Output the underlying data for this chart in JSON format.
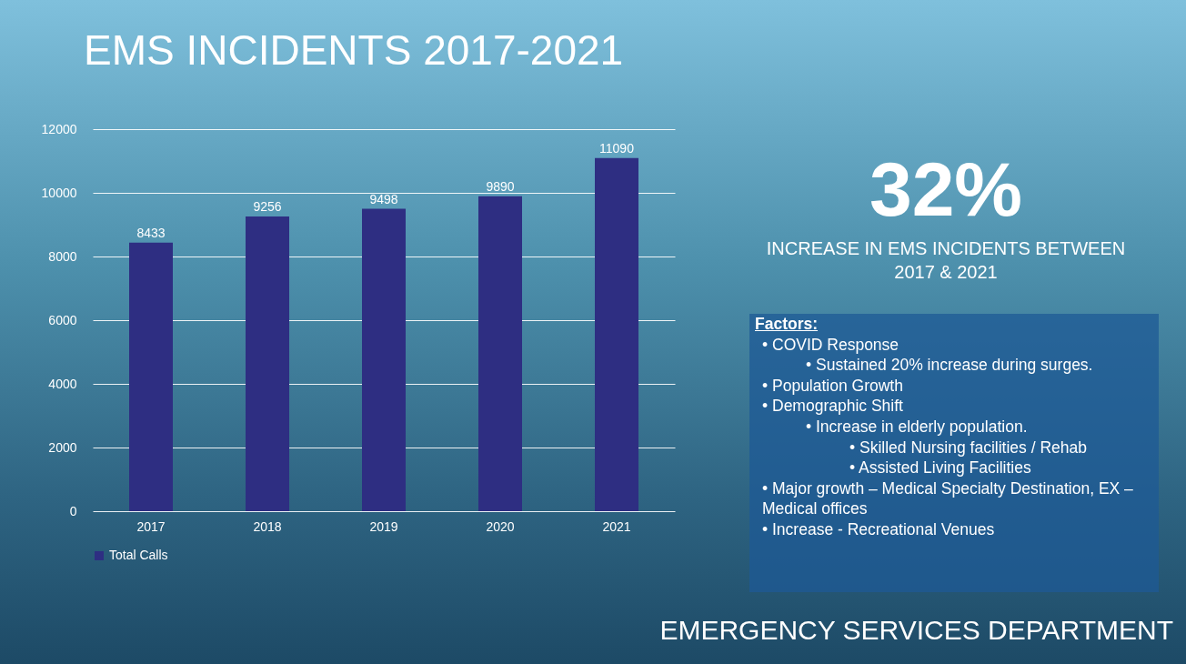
{
  "chart_data": {
    "type": "bar",
    "title": "EMS INCIDENTS 2017-2021",
    "categories": [
      "2017",
      "2018",
      "2019",
      "2020",
      "2021"
    ],
    "series": [
      {
        "name": "Total Calls",
        "color": "#2e2e82",
        "values": [
          8433,
          9256,
          9498,
          9890,
          11090
        ]
      }
    ],
    "ylim": [
      0,
      12000
    ],
    "yticks": [
      0,
      2000,
      4000,
      6000,
      8000,
      10000,
      12000
    ],
    "grid": "y",
    "legend": "bottom",
    "data_labels": true,
    "annotations": [
      "32%",
      "INCREASE IN EMS INCIDENTS BETWEEN 2017 & 2021",
      "Factors:",
      "• COVID Response",
      "• Sustained 20% increase during surges.",
      "• Population Growth",
      "• Demographic Shift",
      "• Increase in elderly population.",
      "• Skilled Nursing facilities / Rehab",
      "• Assisted Living Facilities",
      "• Major growth – Medical Specialty Destination, EX – Medical offices",
      "• Increase - Recreational Venues",
      "EMERGENCY SERVICES DEPARTMENT"
    ]
  }
}
